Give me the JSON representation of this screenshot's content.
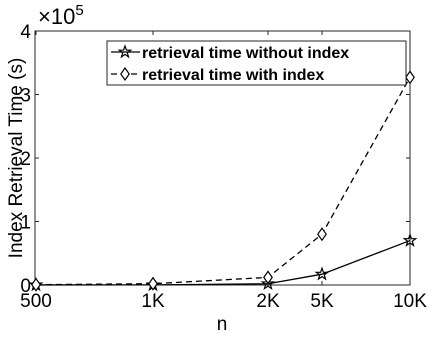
{
  "chart_data": {
    "type": "line",
    "categories": [
      "500",
      "1K",
      "2K",
      "5K",
      "10K"
    ],
    "xlabel": "n",
    "ylabel": "Index Retrieval Time (s)",
    "y_scale_label": "×10",
    "y_scale_exponent": "5",
    "yticks": [
      "0",
      "1",
      "2",
      "3",
      "4"
    ],
    "ylim": [
      0,
      4
    ],
    "grid": false,
    "legend_position": "top-right",
    "series": [
      {
        "name": "retrieval time without index",
        "marker": "star",
        "linestyle": "solid",
        "values": [
          0.001,
          0.002,
          0.02,
          0.17,
          0.7
        ]
      },
      {
        "name": "retrieval time with index",
        "marker": "diamond",
        "linestyle": "dashed",
        "values": [
          0.005,
          0.02,
          0.12,
          0.8,
          3.27
        ]
      }
    ]
  }
}
